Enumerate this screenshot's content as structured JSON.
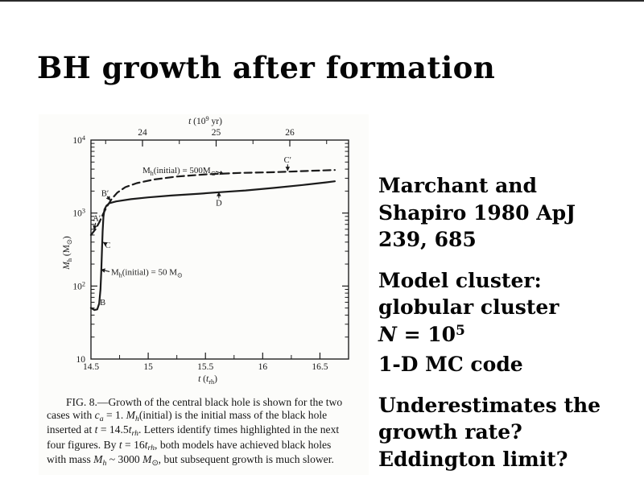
{
  "slide": {
    "title": "BH growth after formation",
    "background_color": "#ffffff",
    "text_color": "#050505"
  },
  "right_column": {
    "paragraphs": [
      {
        "name": "reference",
        "lines": [
          [
            {
              "t": "Marchant and"
            }
          ],
          [
            {
              "t": "Shapiro 1980 ApJ"
            }
          ],
          [
            {
              "t": "239, 685"
            }
          ]
        ]
      },
      {
        "name": "model",
        "lines": [
          [
            {
              "t": "Model cluster:"
            }
          ],
          [
            {
              "t": "globular cluster"
            }
          ],
          [
            {
              "t": "N",
              "s": "i"
            },
            {
              "t": " = 10"
            },
            {
              "t": "5",
              "s": "sup"
            }
          ],
          [
            {
              "t": "1-D MC code"
            }
          ]
        ]
      },
      {
        "name": "questions",
        "lines": [
          [
            {
              "t": "Underestimates the"
            }
          ],
          [
            {
              "t": "growth rate?"
            }
          ],
          [
            {
              "t": "Eddington limit?"
            }
          ]
        ]
      }
    ]
  },
  "figure": {
    "caption_lines": [
      [
        {
          "t": "FIG. 8.—Growth of the central black hole is shown for the two"
        }
      ],
      [
        {
          "t": "cases with "
        },
        {
          "t": "c",
          "s": "i"
        },
        {
          "t": "a",
          "s": "isub"
        },
        {
          "t": " = 1. "
        },
        {
          "t": "M",
          "s": "i"
        },
        {
          "t": "h",
          "s": "isub"
        },
        {
          "t": "(initial) is the initial mass of the black hole"
        }
      ],
      [
        {
          "t": "inserted at "
        },
        {
          "t": "t",
          "s": "i"
        },
        {
          "t": " = 14.5"
        },
        {
          "t": "t",
          "s": "i"
        },
        {
          "t": "rh",
          "s": "isub"
        },
        {
          "t": ". Letters identify times highlighted in the next"
        }
      ],
      [
        {
          "t": "four figures. By "
        },
        {
          "t": "t",
          "s": "i"
        },
        {
          "t": " = 16"
        },
        {
          "t": "t",
          "s": "i"
        },
        {
          "t": "rh",
          "s": "isub"
        },
        {
          "t": ", both models have achieved black holes"
        }
      ],
      [
        {
          "t": "with mass "
        },
        {
          "t": "M",
          "s": "i"
        },
        {
          "t": "h",
          "s": "isub"
        },
        {
          "t": " ~ 3000 "
        },
        {
          "t": "M",
          "s": "i"
        },
        {
          "t": "⊙",
          "s": "sub"
        },
        {
          "t": ", but subsequent growth is much slower."
        }
      ]
    ]
  },
  "chart_data": {
    "type": "line",
    "y_scale": "log",
    "x_axis_bottom": {
      "label_segments": [
        {
          "t": "t",
          "s": "i"
        },
        {
          "t": " ("
        },
        {
          "t": "t",
          "s": "i"
        },
        {
          "t": "rh",
          "s": "sub"
        },
        {
          "t": ")"
        }
      ],
      "label_text": "t (t_rh)",
      "range": [
        14.5,
        16.75
      ],
      "ticks": [
        14.5,
        15,
        15.5,
        16,
        16.5
      ],
      "minor_ticks": [
        14.75,
        15.25,
        15.75,
        16.25
      ]
    },
    "x_axis_top": {
      "label_segments": [
        {
          "t": "t",
          "s": "i"
        },
        {
          "t": " (10"
        },
        {
          "t": "9",
          "s": "sup"
        },
        {
          "t": " yr)"
        }
      ],
      "label_text": "t (10^9 yr)",
      "ticks": [
        24,
        25,
        26
      ],
      "minor_ticks": [
        23.5,
        24.5,
        25.5,
        26.5
      ]
    },
    "y_axis": {
      "label_segments": [
        {
          "t": "M",
          "s": "i"
        },
        {
          "t": "h",
          "s": "sub"
        },
        {
          "t": " (M"
        },
        {
          "t": "⊙",
          "s": "sub"
        },
        {
          "t": ")"
        }
      ],
      "label_text": "M_h (M_sun)",
      "range_logM": [
        1,
        4
      ],
      "tick_logM": [
        4,
        3,
        2,
        1
      ],
      "tick_labels": [
        "10⁴",
        "10³",
        "10²",
        "10"
      ],
      "tick_label_segments": [
        [
          {
            "t": "10"
          },
          {
            "t": "4",
            "s": "sup"
          }
        ],
        [
          {
            "t": "10"
          },
          {
            "t": "3",
            "s": "sup"
          }
        ],
        [
          {
            "t": "10"
          },
          {
            "t": "2",
            "s": "sup"
          }
        ],
        [
          {
            "t": "10"
          }
        ]
      ]
    },
    "series": [
      {
        "name": "M_h(initial) = 50 M_sun",
        "style": "solid",
        "label_segments": [
          {
            "t": "M"
          },
          {
            "t": "h",
            "s": "sub"
          },
          {
            "t": "(initial) = 50 M"
          },
          {
            "t": "⊙",
            "s": "sub"
          }
        ],
        "label_pos": {
          "t": 14.676,
          "logM": 2.152
        },
        "label_arrow": {
          "from": {
            "t": 14.662,
            "logM": 2.197
          },
          "to": {
            "t": 14.588,
            "logM": 2.225
          }
        },
        "points_t_logM": [
          [
            14.5,
            1.7
          ],
          [
            14.53,
            1.672
          ],
          [
            14.555,
            1.68
          ],
          [
            14.572,
            1.76
          ],
          [
            14.583,
            1.95
          ],
          [
            14.59,
            2.2
          ],
          [
            14.596,
            2.5
          ],
          [
            14.602,
            2.75
          ],
          [
            14.609,
            2.95
          ],
          [
            14.618,
            3.05
          ],
          [
            14.635,
            3.1
          ],
          [
            14.66,
            3.135
          ],
          [
            14.72,
            3.16
          ],
          [
            14.85,
            3.19
          ],
          [
            15.0,
            3.215
          ],
          [
            15.2,
            3.24
          ],
          [
            15.45,
            3.265
          ],
          [
            15.62,
            3.285
          ],
          [
            15.85,
            3.31
          ],
          [
            16.1,
            3.345
          ],
          [
            16.35,
            3.385
          ],
          [
            16.55,
            3.42
          ],
          [
            16.63,
            3.435
          ]
        ]
      },
      {
        "name": "M_h(initial) = 500 M_sun",
        "style": "dashed",
        "label_segments": [
          {
            "t": "M"
          },
          {
            "t": "h",
            "s": "sub"
          },
          {
            "t": "(initial) = 500M"
          },
          {
            "t": "⊙",
            "s": "sub"
          }
        ],
        "label_pos": {
          "t": 14.95,
          "logM": 3.548
        },
        "label_arrow": {
          "from": {
            "t": 15.59,
            "logM": 3.57
          },
          "to": {
            "t": 15.66,
            "logM": 3.535
          }
        },
        "points_t_logM": [
          [
            14.5,
            2.7
          ],
          [
            14.54,
            2.78
          ],
          [
            14.575,
            2.88
          ],
          [
            14.61,
            3.0
          ],
          [
            14.64,
            3.09
          ],
          [
            14.68,
            3.19
          ],
          [
            14.73,
            3.28
          ],
          [
            14.8,
            3.355
          ],
          [
            14.9,
            3.41
          ],
          [
            15.05,
            3.46
          ],
          [
            15.25,
            3.5
          ],
          [
            15.5,
            3.53
          ],
          [
            15.8,
            3.55
          ],
          [
            16.1,
            3.56
          ],
          [
            16.4,
            3.578
          ],
          [
            16.63,
            3.59
          ]
        ]
      }
    ],
    "annotations": [
      {
        "label": "A′",
        "t": 14.551,
        "logM": 2.93,
        "arrow_to": {
          "t": 14.527,
          "logM": 2.775
        }
      },
      {
        "label": "B′",
        "t": 14.623,
        "logM": 3.27,
        "arrow_to": {
          "t": 14.668,
          "logM": 3.175
        }
      },
      {
        "label": "B",
        "t": 14.603,
        "logM": 1.78
      },
      {
        "label": "C",
        "t": 14.648,
        "logM": 2.56,
        "arrow_to": {
          "t": 14.606,
          "logM": 2.6
        }
      },
      {
        "label": "D",
        "t": 15.617,
        "logM": 3.14,
        "arrow_to": {
          "t": 15.617,
          "logM": 3.285
        }
      },
      {
        "label": "C′",
        "t": 16.218,
        "logM": 3.73,
        "arrow_to": {
          "t": 16.218,
          "logM": 3.58
        }
      }
    ],
    "line_color": "#1b1b1b"
  }
}
